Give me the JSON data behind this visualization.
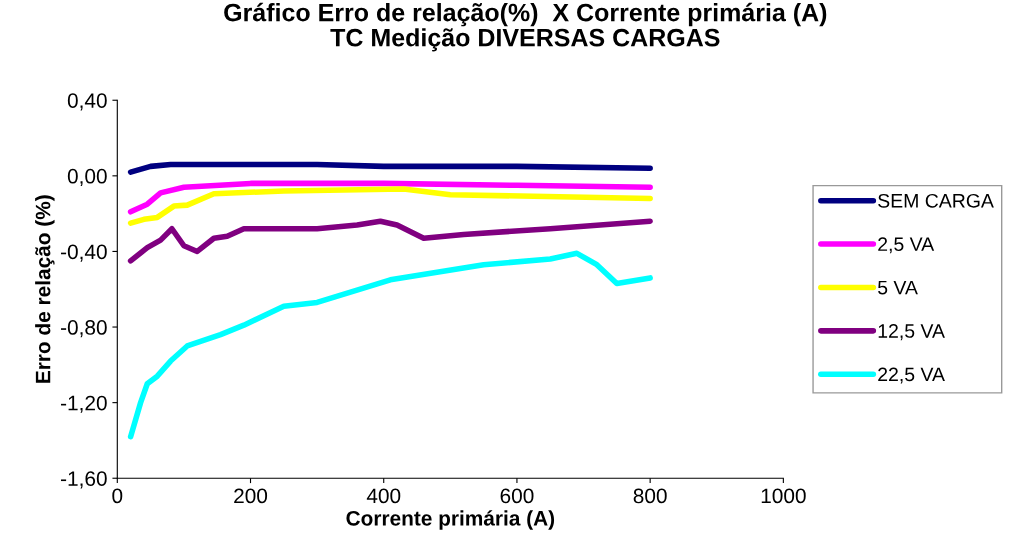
{
  "chart_data": {
    "type": "line",
    "title": "Gráfico Erro de relação(%)  X Corrente primária (A)\nTC Medição DIVERSAS CARGAS",
    "xlabel": "Corrente primária (A)",
    "ylabel": "Erro de relação (%)",
    "series": [
      {
        "name": "SEM CARGA",
        "color": "#000080",
        "x": [
          20,
          50,
          80,
          120,
          200,
          300,
          400,
          600,
          800
        ],
        "values": [
          0.02,
          0.05,
          0.06,
          0.06,
          0.06,
          0.06,
          0.05,
          0.05,
          0.04
        ]
      },
      {
        "name": "2,5 VA",
        "color": "#ff00ff",
        "x": [
          20,
          45,
          65,
          100,
          200,
          400,
          600,
          800
        ],
        "values": [
          -0.19,
          -0.15,
          -0.09,
          -0.06,
          -0.04,
          -0.04,
          -0.05,
          -0.06
        ]
      },
      {
        "name": "5 VA",
        "color": "#ffff00",
        "x": [
          20,
          40,
          60,
          85,
          105,
          145,
          250,
          430,
          500,
          800
        ],
        "values": [
          -0.25,
          -0.23,
          -0.22,
          -0.16,
          -0.155,
          -0.095,
          -0.08,
          -0.07,
          -0.1,
          -0.12
        ]
      },
      {
        "name": "12,5 VA",
        "color": "#800080",
        "x": [
          20,
          45,
          65,
          82,
          100,
          120,
          145,
          165,
          190,
          300,
          360,
          395,
          420,
          460,
          520,
          650,
          800
        ],
        "values": [
          -0.45,
          -0.38,
          -0.34,
          -0.28,
          -0.37,
          -0.4,
          -0.33,
          -0.32,
          -0.28,
          -0.28,
          -0.26,
          -0.24,
          -0.26,
          -0.33,
          -0.31,
          -0.28,
          -0.24
        ]
      },
      {
        "name": "22,5 VA",
        "color": "#00ffff",
        "x": [
          20,
          35,
          45,
          60,
          80,
          105,
          155,
          190,
          250,
          300,
          410,
          550,
          650,
          690,
          720,
          750,
          800
        ],
        "values": [
          -1.38,
          -1.2,
          -1.1,
          -1.06,
          -0.98,
          -0.9,
          -0.84,
          -0.79,
          -0.69,
          -0.67,
          -0.55,
          -0.47,
          -0.44,
          -0.41,
          -0.47,
          -0.57,
          -0.54
        ]
      }
    ],
    "xlim": [
      0,
      1000
    ],
    "xticks": [
      0,
      200,
      400,
      600,
      800,
      1000
    ],
    "ylim": [
      -1.6,
      0.4
    ],
    "yticks": [
      {
        "value": -1.6,
        "label": "-1,60"
      },
      {
        "value": -1.2,
        "label": "-1,20"
      },
      {
        "value": -0.8,
        "label": "-0,80"
      },
      {
        "value": -0.4,
        "label": "-0,40"
      },
      {
        "value": 0,
        "label": "0,00"
      },
      {
        "value": 0.4,
        "label": "0,40"
      }
    ],
    "grid": false,
    "legend": "right",
    "marker": "none",
    "line_style": "solid"
  }
}
